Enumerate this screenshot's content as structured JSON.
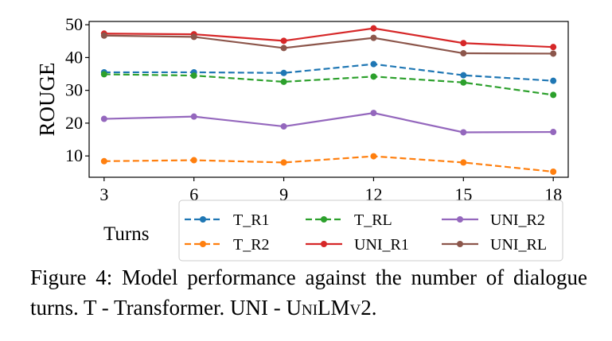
{
  "chart_data": {
    "type": "line",
    "ylabel": "ROUGE",
    "xlabel": "Turns",
    "x": [
      3,
      6,
      9,
      12,
      15,
      18
    ],
    "xticks": [
      "3",
      "6",
      "9",
      "12",
      "15",
      "18"
    ],
    "yticks": [
      "10",
      "20",
      "30",
      "40",
      "50"
    ],
    "xlim": [
      2.5,
      18.5
    ],
    "ylim": [
      3.5,
      51
    ],
    "grid": false,
    "legend_position": "below",
    "series": [
      {
        "name": "T_R1",
        "values": [
          35.5,
          35.5,
          35.3,
          38.0,
          34.6,
          32.9
        ],
        "color": "#1f77b4",
        "dashed": true
      },
      {
        "name": "T_RL",
        "values": [
          34.9,
          34.5,
          32.6,
          34.2,
          32.4,
          28.6
        ],
        "color": "#2ca02c",
        "dashed": true
      },
      {
        "name": "UNI_R2",
        "values": [
          21.3,
          22.0,
          19.0,
          23.1,
          17.2,
          17.3
        ],
        "color": "#9467bd",
        "dashed": false
      },
      {
        "name": "T_R2",
        "values": [
          8.4,
          8.7,
          8.0,
          9.9,
          8.0,
          5.2
        ],
        "color": "#ff7f0e",
        "dashed": true
      },
      {
        "name": "UNI_R1",
        "values": [
          47.3,
          47.1,
          45.1,
          48.9,
          44.4,
          43.2
        ],
        "color": "#d62728",
        "dashed": false
      },
      {
        "name": "UNI_RL",
        "values": [
          46.7,
          46.3,
          42.9,
          46.0,
          41.3,
          41.2
        ],
        "color": "#8c564b",
        "dashed": false
      }
    ]
  },
  "caption": {
    "prefix": "Figure 4:  Model performance against the number of dialogue turns. T - Transformer. UNI - ",
    "model_name": "UniLMv2",
    "suffix": "."
  }
}
